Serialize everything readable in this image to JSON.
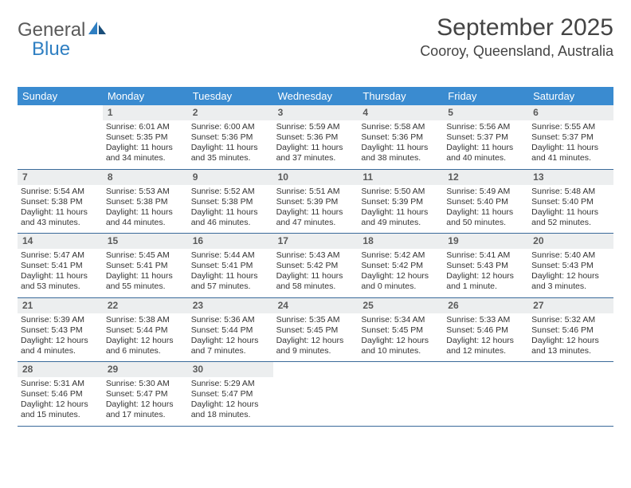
{
  "logo": {
    "text_general": "General",
    "text_blue": "Blue"
  },
  "title": "September 2025",
  "location": "Cooroy, Queensland, Australia",
  "colors": {
    "header_bg": "#3a8bd0",
    "header_text": "#ffffff",
    "daynum_bg": "#eceeef",
    "week_border": "#3a6a9a",
    "logo_blue": "#2f7fc2"
  },
  "day_names": [
    "Sunday",
    "Monday",
    "Tuesday",
    "Wednesday",
    "Thursday",
    "Friday",
    "Saturday"
  ],
  "weeks": [
    [
      {
        "day": "",
        "sunrise": "",
        "sunset": "",
        "daylight1": "",
        "daylight2": ""
      },
      {
        "day": "1",
        "sunrise": "Sunrise: 6:01 AM",
        "sunset": "Sunset: 5:35 PM",
        "daylight1": "Daylight: 11 hours",
        "daylight2": "and 34 minutes."
      },
      {
        "day": "2",
        "sunrise": "Sunrise: 6:00 AM",
        "sunset": "Sunset: 5:36 PM",
        "daylight1": "Daylight: 11 hours",
        "daylight2": "and 35 minutes."
      },
      {
        "day": "3",
        "sunrise": "Sunrise: 5:59 AM",
        "sunset": "Sunset: 5:36 PM",
        "daylight1": "Daylight: 11 hours",
        "daylight2": "and 37 minutes."
      },
      {
        "day": "4",
        "sunrise": "Sunrise: 5:58 AM",
        "sunset": "Sunset: 5:36 PM",
        "daylight1": "Daylight: 11 hours",
        "daylight2": "and 38 minutes."
      },
      {
        "day": "5",
        "sunrise": "Sunrise: 5:56 AM",
        "sunset": "Sunset: 5:37 PM",
        "daylight1": "Daylight: 11 hours",
        "daylight2": "and 40 minutes."
      },
      {
        "day": "6",
        "sunrise": "Sunrise: 5:55 AM",
        "sunset": "Sunset: 5:37 PM",
        "daylight1": "Daylight: 11 hours",
        "daylight2": "and 41 minutes."
      }
    ],
    [
      {
        "day": "7",
        "sunrise": "Sunrise: 5:54 AM",
        "sunset": "Sunset: 5:38 PM",
        "daylight1": "Daylight: 11 hours",
        "daylight2": "and 43 minutes."
      },
      {
        "day": "8",
        "sunrise": "Sunrise: 5:53 AM",
        "sunset": "Sunset: 5:38 PM",
        "daylight1": "Daylight: 11 hours",
        "daylight2": "and 44 minutes."
      },
      {
        "day": "9",
        "sunrise": "Sunrise: 5:52 AM",
        "sunset": "Sunset: 5:38 PM",
        "daylight1": "Daylight: 11 hours",
        "daylight2": "and 46 minutes."
      },
      {
        "day": "10",
        "sunrise": "Sunrise: 5:51 AM",
        "sunset": "Sunset: 5:39 PM",
        "daylight1": "Daylight: 11 hours",
        "daylight2": "and 47 minutes."
      },
      {
        "day": "11",
        "sunrise": "Sunrise: 5:50 AM",
        "sunset": "Sunset: 5:39 PM",
        "daylight1": "Daylight: 11 hours",
        "daylight2": "and 49 minutes."
      },
      {
        "day": "12",
        "sunrise": "Sunrise: 5:49 AM",
        "sunset": "Sunset: 5:40 PM",
        "daylight1": "Daylight: 11 hours",
        "daylight2": "and 50 minutes."
      },
      {
        "day": "13",
        "sunrise": "Sunrise: 5:48 AM",
        "sunset": "Sunset: 5:40 PM",
        "daylight1": "Daylight: 11 hours",
        "daylight2": "and 52 minutes."
      }
    ],
    [
      {
        "day": "14",
        "sunrise": "Sunrise: 5:47 AM",
        "sunset": "Sunset: 5:41 PM",
        "daylight1": "Daylight: 11 hours",
        "daylight2": "and 53 minutes."
      },
      {
        "day": "15",
        "sunrise": "Sunrise: 5:45 AM",
        "sunset": "Sunset: 5:41 PM",
        "daylight1": "Daylight: 11 hours",
        "daylight2": "and 55 minutes."
      },
      {
        "day": "16",
        "sunrise": "Sunrise: 5:44 AM",
        "sunset": "Sunset: 5:41 PM",
        "daylight1": "Daylight: 11 hours",
        "daylight2": "and 57 minutes."
      },
      {
        "day": "17",
        "sunrise": "Sunrise: 5:43 AM",
        "sunset": "Sunset: 5:42 PM",
        "daylight1": "Daylight: 11 hours",
        "daylight2": "and 58 minutes."
      },
      {
        "day": "18",
        "sunrise": "Sunrise: 5:42 AM",
        "sunset": "Sunset: 5:42 PM",
        "daylight1": "Daylight: 12 hours",
        "daylight2": "and 0 minutes."
      },
      {
        "day": "19",
        "sunrise": "Sunrise: 5:41 AM",
        "sunset": "Sunset: 5:43 PM",
        "daylight1": "Daylight: 12 hours",
        "daylight2": "and 1 minute."
      },
      {
        "day": "20",
        "sunrise": "Sunrise: 5:40 AM",
        "sunset": "Sunset: 5:43 PM",
        "daylight1": "Daylight: 12 hours",
        "daylight2": "and 3 minutes."
      }
    ],
    [
      {
        "day": "21",
        "sunrise": "Sunrise: 5:39 AM",
        "sunset": "Sunset: 5:43 PM",
        "daylight1": "Daylight: 12 hours",
        "daylight2": "and 4 minutes."
      },
      {
        "day": "22",
        "sunrise": "Sunrise: 5:38 AM",
        "sunset": "Sunset: 5:44 PM",
        "daylight1": "Daylight: 12 hours",
        "daylight2": "and 6 minutes."
      },
      {
        "day": "23",
        "sunrise": "Sunrise: 5:36 AM",
        "sunset": "Sunset: 5:44 PM",
        "daylight1": "Daylight: 12 hours",
        "daylight2": "and 7 minutes."
      },
      {
        "day": "24",
        "sunrise": "Sunrise: 5:35 AM",
        "sunset": "Sunset: 5:45 PM",
        "daylight1": "Daylight: 12 hours",
        "daylight2": "and 9 minutes."
      },
      {
        "day": "25",
        "sunrise": "Sunrise: 5:34 AM",
        "sunset": "Sunset: 5:45 PM",
        "daylight1": "Daylight: 12 hours",
        "daylight2": "and 10 minutes."
      },
      {
        "day": "26",
        "sunrise": "Sunrise: 5:33 AM",
        "sunset": "Sunset: 5:46 PM",
        "daylight1": "Daylight: 12 hours",
        "daylight2": "and 12 minutes."
      },
      {
        "day": "27",
        "sunrise": "Sunrise: 5:32 AM",
        "sunset": "Sunset: 5:46 PM",
        "daylight1": "Daylight: 12 hours",
        "daylight2": "and 13 minutes."
      }
    ],
    [
      {
        "day": "28",
        "sunrise": "Sunrise: 5:31 AM",
        "sunset": "Sunset: 5:46 PM",
        "daylight1": "Daylight: 12 hours",
        "daylight2": "and 15 minutes."
      },
      {
        "day": "29",
        "sunrise": "Sunrise: 5:30 AM",
        "sunset": "Sunset: 5:47 PM",
        "daylight1": "Daylight: 12 hours",
        "daylight2": "and 17 minutes."
      },
      {
        "day": "30",
        "sunrise": "Sunrise: 5:29 AM",
        "sunset": "Sunset: 5:47 PM",
        "daylight1": "Daylight: 12 hours",
        "daylight2": "and 18 minutes."
      },
      {
        "day": "",
        "sunrise": "",
        "sunset": "",
        "daylight1": "",
        "daylight2": ""
      },
      {
        "day": "",
        "sunrise": "",
        "sunset": "",
        "daylight1": "",
        "daylight2": ""
      },
      {
        "day": "",
        "sunrise": "",
        "sunset": "",
        "daylight1": "",
        "daylight2": ""
      },
      {
        "day": "",
        "sunrise": "",
        "sunset": "",
        "daylight1": "",
        "daylight2": ""
      }
    ]
  ]
}
